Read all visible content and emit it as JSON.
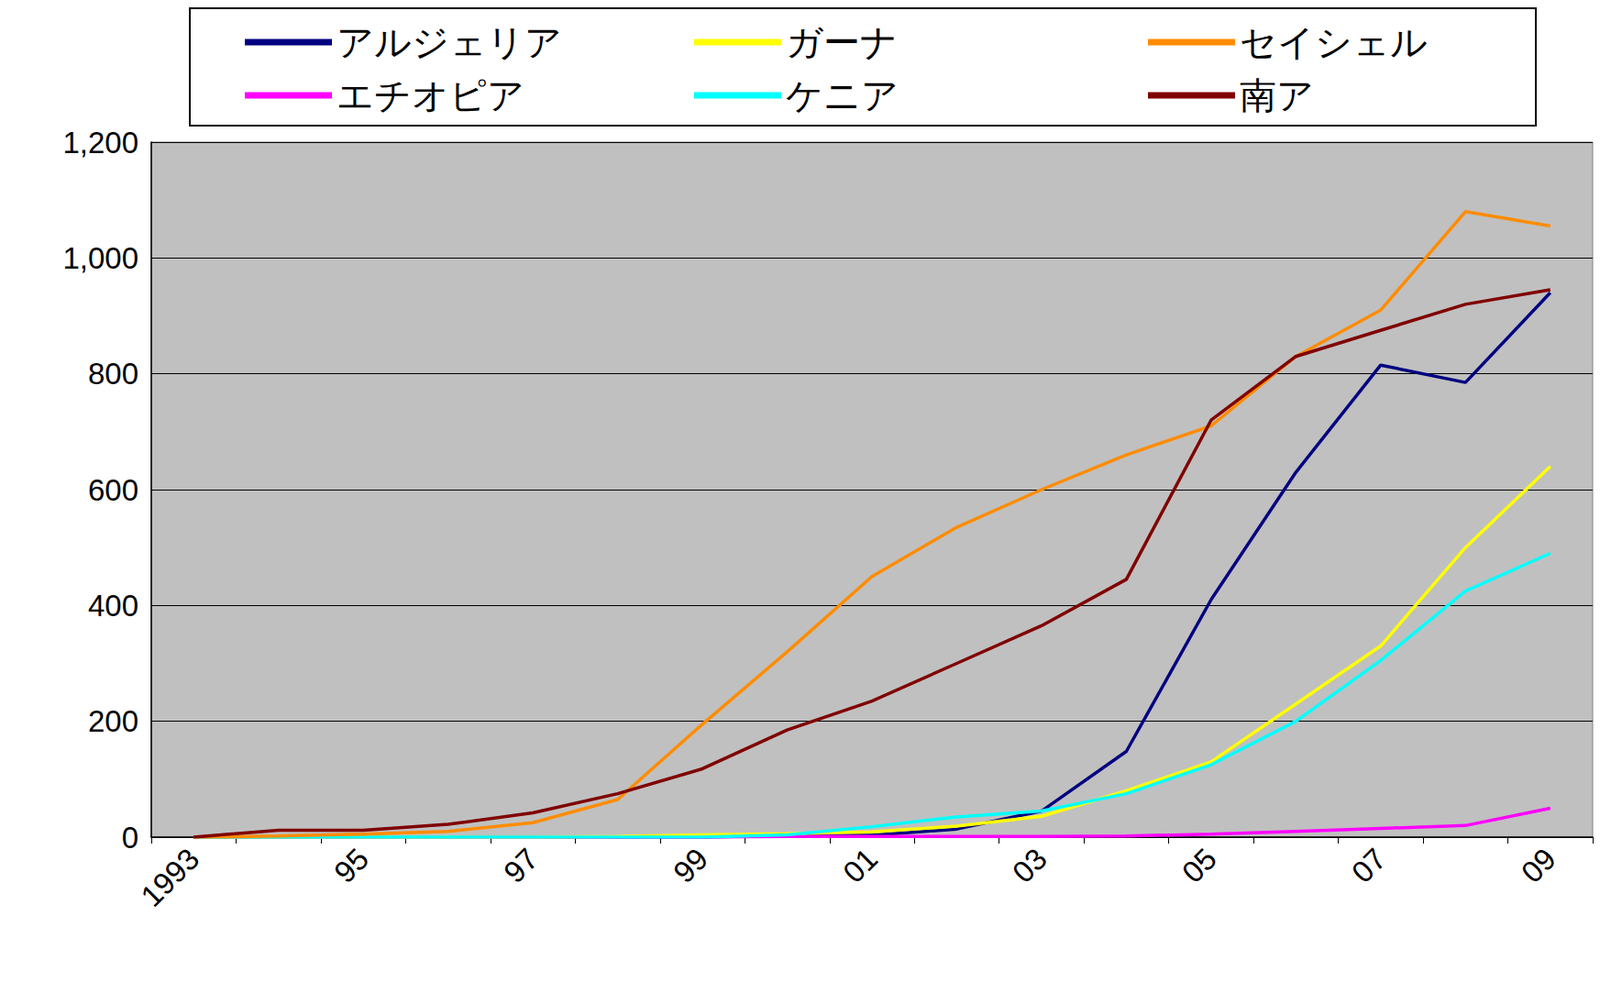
{
  "chart_data": {
    "type": "line",
    "categories": [
      "1993",
      null,
      "95",
      null,
      "97",
      null,
      "99",
      null,
      "01",
      null,
      "03",
      null,
      "05",
      null,
      "07",
      null,
      "09"
    ],
    "series": [
      {
        "name": "アルジェリア",
        "color": "#000080",
        "values": [
          0,
          0,
          0,
          0,
          0,
          0,
          0,
          3,
          3,
          14,
          45,
          148,
          410,
          630,
          815,
          785,
          940
        ]
      },
      {
        "name": "エチオピア",
        "color": "#ff00ff",
        "values": [
          0,
          0,
          0,
          0,
          0,
          0,
          0,
          1,
          1,
          1,
          1,
          2,
          5,
          10,
          15,
          20,
          50
        ]
      },
      {
        "name": "ガーナ",
        "color": "#ffff00",
        "values": [
          0,
          0,
          0,
          0,
          0,
          1,
          4,
          6,
          9,
          19,
          36,
          80,
          130,
          230,
          330,
          500,
          640
        ]
      },
      {
        "name": "ケニア",
        "color": "#00ffff",
        "values": [
          0,
          0,
          0,
          0,
          0,
          0,
          0,
          4,
          18,
          35,
          45,
          75,
          125,
          200,
          305,
          425,
          490
        ]
      },
      {
        "name": "セイシェル",
        "color": "#ff8c00",
        "values": [
          0,
          2,
          5,
          10,
          25,
          65,
          195,
          320,
          450,
          535,
          600,
          660,
          710,
          830,
          910,
          1080,
          1055
        ]
      },
      {
        "name": "南ア",
        "color": "#800000",
        "values": [
          0,
          12,
          12,
          22,
          42,
          75,
          118,
          185,
          235,
          300,
          365,
          445,
          720,
          830,
          875,
          920,
          945
        ]
      }
    ],
    "ylim": [
      0,
      1200
    ],
    "yticks": [
      0,
      200,
      400,
      600,
      800,
      {
        "value": 1000,
        "label": "1,000"
      },
      {
        "value": 1200,
        "label": "1,200"
      }
    ],
    "grid": true,
    "legend": "top"
  }
}
